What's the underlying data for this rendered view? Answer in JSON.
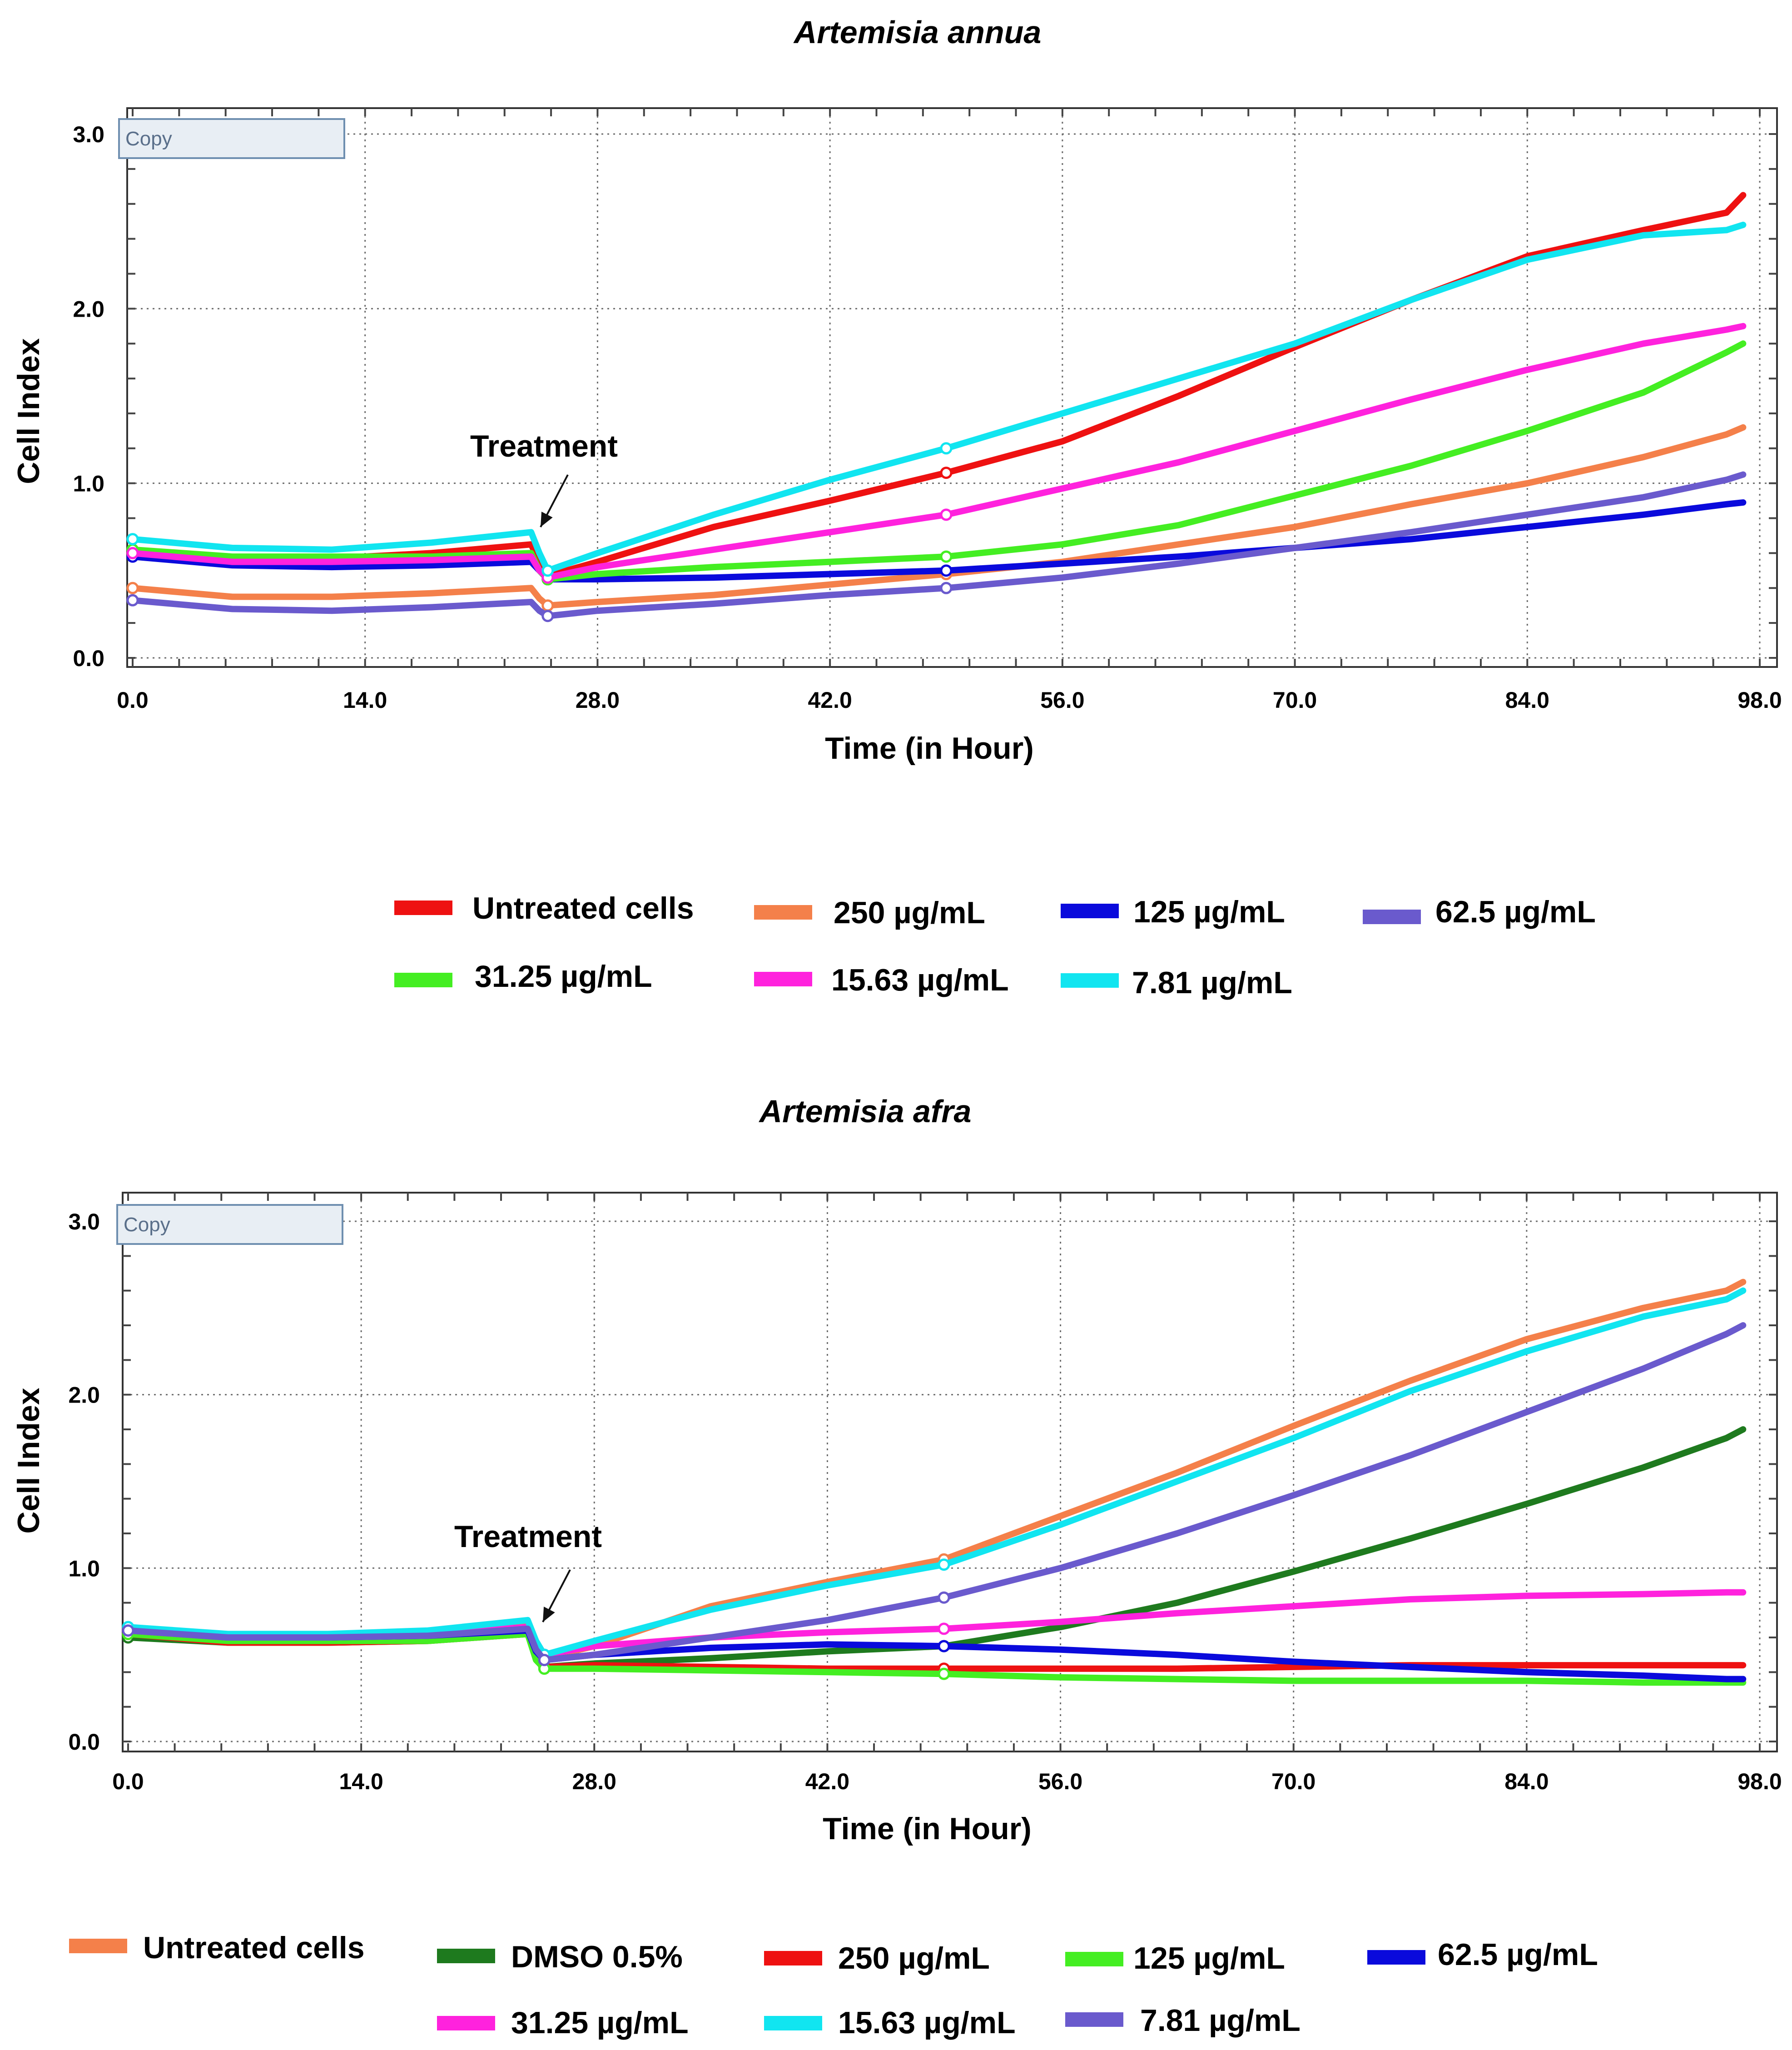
{
  "chart_data": [
    {
      "type": "line",
      "title": "Artemisia annua",
      "xlabel": "Time (in Hour)",
      "ylabel": "Cell Index",
      "xlim": [
        0,
        98
      ],
      "ylim": [
        0,
        3
      ],
      "xticks": [
        "0.0",
        "14.0",
        "28.0",
        "42.0",
        "56.0",
        "70.0",
        "84.0",
        "98.0"
      ],
      "yticks": [
        "0.0",
        "1.0",
        "2.0",
        "3.0"
      ],
      "grid": true,
      "copy_label": "Copy",
      "annotation": {
        "text": "Treatment",
        "x": 24,
        "y": 0.55
      },
      "series": [
        {
          "name": "Untreated cells",
          "color": "#ee1111",
          "x": [
            0,
            6,
            12,
            18,
            24,
            24.5,
            25,
            28,
            35,
            42,
            49,
            56,
            63,
            70,
            77,
            84,
            91,
            96,
            97
          ],
          "values": [
            0.6,
            0.57,
            0.57,
            0.6,
            0.65,
            0.55,
            0.47,
            0.55,
            0.75,
            0.9,
            1.06,
            1.24,
            1.5,
            1.78,
            2.05,
            2.3,
            2.45,
            2.55,
            2.65
          ]
        },
        {
          "name": "250 µg/mL",
          "color": "#f4804a",
          "x": [
            0,
            6,
            12,
            18,
            24,
            24.5,
            25,
            28,
            35,
            42,
            49,
            56,
            63,
            70,
            77,
            84,
            91,
            96,
            97
          ],
          "values": [
            0.4,
            0.35,
            0.35,
            0.37,
            0.4,
            0.34,
            0.3,
            0.32,
            0.36,
            0.42,
            0.48,
            0.55,
            0.65,
            0.75,
            0.88,
            1.0,
            1.15,
            1.28,
            1.32
          ]
        },
        {
          "name": "125 µg/mL",
          "color": "#0a0adc",
          "x": [
            0,
            6,
            12,
            18,
            24,
            24.5,
            25,
            28,
            35,
            42,
            49,
            56,
            63,
            70,
            77,
            84,
            91,
            96,
            97
          ],
          "values": [
            0.58,
            0.53,
            0.52,
            0.53,
            0.55,
            0.5,
            0.45,
            0.45,
            0.46,
            0.48,
            0.5,
            0.54,
            0.58,
            0.63,
            0.68,
            0.75,
            0.82,
            0.88,
            0.89
          ]
        },
        {
          "name": "62.5 µg/mL",
          "color": "#6a5acd",
          "x": [
            0,
            6,
            12,
            18,
            24,
            24.5,
            25,
            28,
            35,
            42,
            49,
            56,
            63,
            70,
            77,
            84,
            91,
            96,
            97
          ],
          "values": [
            0.33,
            0.28,
            0.27,
            0.29,
            0.32,
            0.27,
            0.24,
            0.27,
            0.31,
            0.36,
            0.4,
            0.46,
            0.54,
            0.63,
            0.72,
            0.82,
            0.92,
            1.02,
            1.05
          ]
        },
        {
          "name": "31.25 µg/mL",
          "color": "#44ee22",
          "x": [
            0,
            6,
            12,
            18,
            24,
            24.5,
            25,
            28,
            35,
            42,
            49,
            56,
            63,
            70,
            77,
            84,
            91,
            96,
            97
          ],
          "values": [
            0.62,
            0.58,
            0.58,
            0.58,
            0.6,
            0.5,
            0.45,
            0.48,
            0.52,
            0.55,
            0.58,
            0.65,
            0.76,
            0.93,
            1.1,
            1.3,
            1.52,
            1.75,
            1.8
          ]
        },
        {
          "name": "15.63 µg/mL",
          "color": "#ff22dd",
          "x": [
            0,
            6,
            12,
            18,
            24,
            24.5,
            25,
            28,
            35,
            42,
            49,
            56,
            63,
            70,
            77,
            84,
            91,
            96,
            97
          ],
          "values": [
            0.6,
            0.55,
            0.55,
            0.56,
            0.58,
            0.5,
            0.46,
            0.52,
            0.62,
            0.72,
            0.82,
            0.97,
            1.12,
            1.3,
            1.48,
            1.65,
            1.8,
            1.88,
            1.9
          ]
        },
        {
          "name": "7.81 µg/mL",
          "color": "#11e5f0",
          "x": [
            0,
            6,
            12,
            18,
            24,
            24.5,
            25,
            28,
            35,
            42,
            49,
            56,
            63,
            70,
            77,
            84,
            91,
            96,
            97
          ],
          "values": [
            0.68,
            0.63,
            0.62,
            0.66,
            0.72,
            0.6,
            0.5,
            0.6,
            0.82,
            1.02,
            1.2,
            1.4,
            1.6,
            1.8,
            2.05,
            2.28,
            2.42,
            2.45,
            2.48
          ]
        }
      ]
    },
    {
      "type": "line",
      "title": "Artemisia afra",
      "xlabel": "Time (in Hour)",
      "ylabel": "Cell Index",
      "xlim": [
        0,
        98
      ],
      "ylim": [
        0,
        3
      ],
      "xticks": [
        "0.0",
        "14.0",
        "28.0",
        "42.0",
        "56.0",
        "70.0",
        "84.0",
        "98.0"
      ],
      "yticks": [
        "0.0",
        "1.0",
        "2.0",
        "3.0"
      ],
      "grid": true,
      "copy_label": "Copy",
      "annotation": {
        "text": "Treatment",
        "x": 24.5,
        "y": 0.5
      },
      "series": [
        {
          "name": "Untreated cells",
          "color": "#f4804a",
          "x": [
            0,
            6,
            12,
            18,
            24,
            24.5,
            25,
            28,
            35,
            42,
            49,
            56,
            63,
            70,
            77,
            84,
            91,
            96,
            97
          ],
          "values": [
            0.65,
            0.6,
            0.6,
            0.62,
            0.68,
            0.55,
            0.48,
            0.55,
            0.78,
            0.92,
            1.05,
            1.3,
            1.55,
            1.82,
            2.08,
            2.32,
            2.5,
            2.6,
            2.65
          ]
        },
        {
          "name": "DMSO 0.5%",
          "color": "#1e7a1e",
          "x": [
            0,
            6,
            12,
            18,
            24,
            24.5,
            25,
            28,
            35,
            42,
            49,
            56,
            63,
            70,
            77,
            84,
            91,
            96,
            97
          ],
          "values": [
            0.6,
            0.57,
            0.57,
            0.58,
            0.62,
            0.48,
            0.43,
            0.45,
            0.48,
            0.52,
            0.55,
            0.66,
            0.8,
            0.98,
            1.17,
            1.37,
            1.58,
            1.75,
            1.8
          ]
        },
        {
          "name": "250 µg/mL",
          "color": "#ee1111",
          "x": [
            0,
            6,
            12,
            18,
            24,
            24.5,
            25,
            28,
            35,
            42,
            49,
            56,
            63,
            70,
            77,
            84,
            91,
            96,
            97
          ],
          "values": [
            0.62,
            0.57,
            0.57,
            0.58,
            0.62,
            0.48,
            0.43,
            0.44,
            0.43,
            0.42,
            0.42,
            0.42,
            0.42,
            0.43,
            0.44,
            0.44,
            0.44,
            0.44,
            0.44
          ]
        },
        {
          "name": "125 µg/mL",
          "color": "#44ee22",
          "x": [
            0,
            6,
            12,
            18,
            24,
            24.5,
            25,
            28,
            35,
            42,
            49,
            56,
            63,
            70,
            77,
            84,
            91,
            96,
            97
          ],
          "values": [
            0.62,
            0.58,
            0.58,
            0.58,
            0.62,
            0.47,
            0.42,
            0.42,
            0.41,
            0.4,
            0.39,
            0.37,
            0.36,
            0.35,
            0.35,
            0.35,
            0.34,
            0.34,
            0.34
          ]
        },
        {
          "name": "62.5 µg/mL",
          "color": "#0a0adc",
          "x": [
            0,
            6,
            12,
            18,
            24,
            24.5,
            25,
            28,
            35,
            42,
            49,
            56,
            63,
            70,
            77,
            84,
            91,
            96,
            97
          ],
          "values": [
            0.64,
            0.6,
            0.6,
            0.61,
            0.64,
            0.52,
            0.47,
            0.5,
            0.54,
            0.56,
            0.55,
            0.53,
            0.5,
            0.46,
            0.43,
            0.4,
            0.38,
            0.36,
            0.36
          ]
        },
        {
          "name": "31.25 µg/mL",
          "color": "#ff22dd",
          "x": [
            0,
            6,
            12,
            18,
            24,
            24.5,
            25,
            28,
            35,
            42,
            49,
            56,
            63,
            70,
            77,
            84,
            91,
            96,
            97
          ],
          "values": [
            0.64,
            0.6,
            0.6,
            0.62,
            0.66,
            0.55,
            0.5,
            0.55,
            0.6,
            0.63,
            0.65,
            0.69,
            0.74,
            0.78,
            0.82,
            0.84,
            0.85,
            0.86,
            0.86
          ]
        },
        {
          "name": "15.63 µg/mL",
          "color": "#11e5f0",
          "x": [
            0,
            6,
            12,
            18,
            24,
            24.5,
            25,
            28,
            35,
            42,
            49,
            56,
            63,
            70,
            77,
            84,
            91,
            96,
            97
          ],
          "values": [
            0.66,
            0.62,
            0.62,
            0.64,
            0.7,
            0.58,
            0.5,
            0.58,
            0.76,
            0.9,
            1.02,
            1.25,
            1.5,
            1.75,
            2.02,
            2.25,
            2.45,
            2.55,
            2.6
          ]
        },
        {
          "name": "7.81 µg/mL",
          "color": "#6a5acd",
          "x": [
            0,
            6,
            12,
            18,
            24,
            24.5,
            25,
            28,
            35,
            42,
            49,
            56,
            63,
            70,
            77,
            84,
            91,
            96,
            97
          ],
          "values": [
            0.64,
            0.6,
            0.6,
            0.61,
            0.65,
            0.53,
            0.47,
            0.5,
            0.6,
            0.7,
            0.83,
            1.0,
            1.2,
            1.42,
            1.65,
            1.9,
            2.15,
            2.35,
            2.4
          ]
        }
      ]
    }
  ]
}
